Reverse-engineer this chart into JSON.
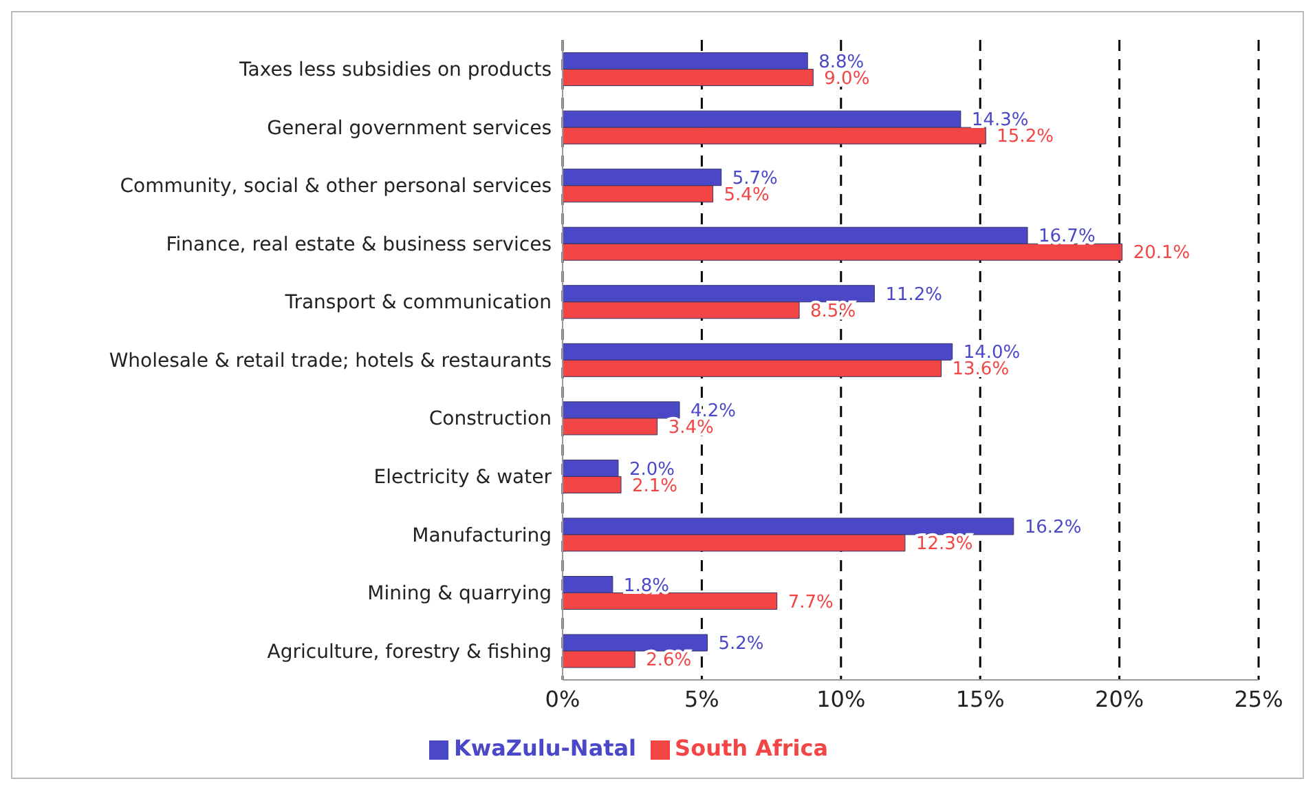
{
  "chart_data": {
    "type": "bar",
    "orientation": "horizontal",
    "categories": [
      "Taxes less subsidies on products",
      "General government services",
      "Community, social & other personal services",
      "Finance, real estate & business services",
      "Transport & communication",
      "Wholesale & retail trade; hotels & restaurants",
      "Construction",
      "Electricity & water",
      "Manufacturing",
      "Mining & quarrying",
      "Agriculture, forestry & fishing"
    ],
    "series": [
      {
        "name": "KwaZulu-Natal",
        "color": "#4b48c8",
        "values": [
          8.8,
          14.3,
          5.7,
          16.7,
          11.2,
          14.0,
          4.2,
          2.0,
          16.2,
          1.8,
          5.2
        ],
        "value_labels": [
          "8.8%",
          "14.3%",
          "5.7%",
          "16.7%",
          "11.2%",
          "14.0%",
          "4.2%",
          "2.0%",
          "16.2%",
          "1.8%",
          "5.2%"
        ]
      },
      {
        "name": "South Africa",
        "color": "#f24545",
        "values": [
          9.0,
          15.2,
          5.4,
          20.1,
          8.5,
          13.6,
          3.4,
          2.1,
          12.3,
          7.7,
          2.6
        ],
        "value_labels": [
          "9.0%",
          "15.2%",
          "5.4%",
          "20.1%",
          "8.5%",
          "13.6%",
          "3.4%",
          "2.1%",
          "12.3%",
          "7.7%",
          "2.6%"
        ]
      }
    ],
    "xlim": [
      0,
      25
    ],
    "xticks": [
      {
        "value": 0,
        "label": "0%"
      },
      {
        "value": 5,
        "label": "5%"
      },
      {
        "value": 10,
        "label": "10%"
      },
      {
        "value": 15,
        "label": "15%"
      },
      {
        "value": 20,
        "label": "20%"
      },
      {
        "value": 25,
        "label": "25%"
      }
    ],
    "grid": "x",
    "legend": "bottom"
  }
}
